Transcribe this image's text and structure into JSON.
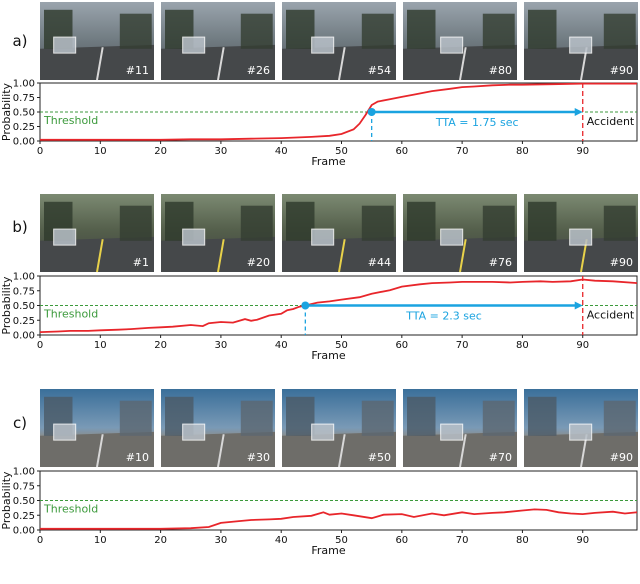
{
  "colors": {
    "curve": "#e8262b",
    "threshold": "#3c9a3c",
    "tta": "#1aa3e0",
    "accident": "#e8262b"
  },
  "chart_data": [
    {
      "panel": "a)",
      "type": "line",
      "xlabel": "Frame",
      "ylabel": "Probability",
      "xlim": [
        0,
        99
      ],
      "ylim": [
        0,
        1
      ],
      "xticks": [
        "0",
        "10",
        "20",
        "30",
        "40",
        "50",
        "60",
        "70",
        "80",
        "90"
      ],
      "yticks": [
        "0.00",
        "0.25",
        "0.50",
        "0.75",
        "1.00"
      ],
      "threshold": 0.5,
      "threshold_label": "Threshold",
      "tta": {
        "start": 55,
        "end": 90,
        "label": "TTA = 1.75 sec"
      },
      "accident": {
        "frame": 90,
        "label": "Accident"
      },
      "frames": [
        "#11",
        "#26",
        "#54",
        "#80",
        "#90"
      ],
      "series": [
        {
          "x": [
            0,
            5,
            10,
            15,
            20,
            25,
            30,
            35,
            40,
            45,
            48,
            50,
            52,
            53,
            54,
            55,
            56,
            58,
            60,
            62,
            65,
            68,
            70,
            72,
            75,
            78,
            80,
            85,
            90,
            95,
            99
          ],
          "values": [
            0.02,
            0.02,
            0.02,
            0.02,
            0.02,
            0.03,
            0.03,
            0.04,
            0.05,
            0.07,
            0.09,
            0.12,
            0.2,
            0.3,
            0.45,
            0.62,
            0.68,
            0.72,
            0.76,
            0.8,
            0.86,
            0.9,
            0.93,
            0.94,
            0.96,
            0.97,
            0.97,
            0.98,
            0.99,
            0.99,
            0.99
          ]
        }
      ]
    },
    {
      "panel": "b)",
      "type": "line",
      "xlabel": "Frame",
      "ylabel": "Probability",
      "xlim": [
        0,
        99
      ],
      "ylim": [
        0,
        1
      ],
      "xticks": [
        "0",
        "10",
        "20",
        "30",
        "40",
        "50",
        "60",
        "70",
        "80",
        "90"
      ],
      "yticks": [
        "0.00",
        "0.25",
        "0.50",
        "0.75",
        "1.00"
      ],
      "threshold": 0.5,
      "threshold_label": "Threshold",
      "tta": {
        "start": 44,
        "end": 90,
        "label": "TTA = 2.3 sec"
      },
      "accident": {
        "frame": 90,
        "label": "Accident"
      },
      "frames": [
        "#1",
        "#20",
        "#44",
        "#76",
        "#90"
      ],
      "series": [
        {
          "x": [
            0,
            3,
            5,
            8,
            10,
            13,
            15,
            18,
            20,
            22,
            25,
            27,
            28,
            30,
            32,
            34,
            35,
            36,
            38,
            40,
            41,
            42,
            43,
            44,
            46,
            48,
            50,
            53,
            55,
            58,
            60,
            63,
            65,
            68,
            70,
            73,
            75,
            78,
            80,
            83,
            85,
            88,
            90,
            92,
            95,
            99
          ],
          "values": [
            0.05,
            0.06,
            0.07,
            0.07,
            0.08,
            0.09,
            0.1,
            0.12,
            0.13,
            0.14,
            0.17,
            0.15,
            0.2,
            0.22,
            0.21,
            0.27,
            0.24,
            0.26,
            0.33,
            0.36,
            0.42,
            0.44,
            0.48,
            0.5,
            0.55,
            0.57,
            0.6,
            0.64,
            0.7,
            0.76,
            0.82,
            0.86,
            0.88,
            0.89,
            0.9,
            0.9,
            0.9,
            0.89,
            0.9,
            0.91,
            0.9,
            0.91,
            0.94,
            0.92,
            0.91,
            0.88
          ]
        }
      ]
    },
    {
      "panel": "c)",
      "type": "line",
      "xlabel": "Frame",
      "ylabel": "Probability",
      "xlim": [
        0,
        99
      ],
      "ylim": [
        0,
        1
      ],
      "xticks": [
        "0",
        "10",
        "20",
        "30",
        "40",
        "50",
        "60",
        "70",
        "80",
        "90"
      ],
      "yticks": [
        "0.00",
        "0.25",
        "0.50",
        "0.75",
        "1.00"
      ],
      "threshold": 0.5,
      "threshold_label": "Threshold",
      "frames": [
        "#10",
        "#30",
        "#50",
        "#70",
        "#90"
      ],
      "series": [
        {
          "x": [
            0,
            5,
            10,
            15,
            20,
            25,
            28,
            30,
            33,
            35,
            38,
            40,
            42,
            45,
            47,
            48,
            50,
            52,
            55,
            57,
            60,
            62,
            65,
            67,
            70,
            72,
            75,
            77,
            80,
            82,
            84,
            86,
            88,
            90,
            92,
            95,
            97,
            99
          ],
          "values": [
            0.02,
            0.02,
            0.02,
            0.02,
            0.02,
            0.03,
            0.05,
            0.12,
            0.15,
            0.17,
            0.18,
            0.19,
            0.22,
            0.24,
            0.3,
            0.26,
            0.28,
            0.25,
            0.2,
            0.26,
            0.27,
            0.22,
            0.28,
            0.25,
            0.3,
            0.27,
            0.29,
            0.3,
            0.33,
            0.35,
            0.34,
            0.3,
            0.28,
            0.27,
            0.29,
            0.31,
            0.28,
            0.3
          ]
        }
      ]
    }
  ]
}
